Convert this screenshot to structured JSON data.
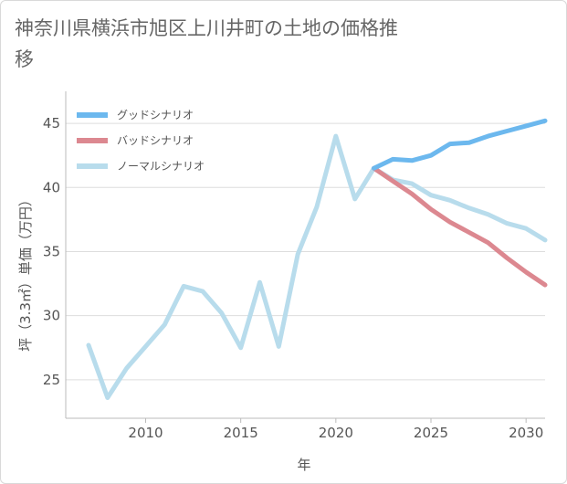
{
  "chart_data": {
    "type": "line",
    "title": "神奈川県横浜市旭区上川井町の土地の価格推移",
    "xlabel": "年",
    "ylabel": "坪（3.3㎡）単価（万円）",
    "xlim": [
      2005.8,
      2031
    ],
    "ylim": [
      22,
      47.5
    ],
    "xticks": [
      2010,
      2015,
      2020,
      2025,
      2030
    ],
    "yticks": [
      25,
      30,
      35,
      40,
      45
    ],
    "grid": "horizontal",
    "legend_position": "top-left",
    "series": [
      {
        "name": "グッドシナリオ",
        "color": "#6cb8ee",
        "x": [
          2022,
          2023,
          2024,
          2025,
          2026,
          2027,
          2028,
          2029,
          2030,
          2031
        ],
        "values": [
          41.5,
          42.2,
          42.1,
          42.5,
          43.4,
          43.5,
          44.0,
          44.4,
          44.8,
          45.2
        ]
      },
      {
        "name": "バッドシナリオ",
        "color": "#dc8890",
        "x": [
          2022,
          2023,
          2024,
          2025,
          2026,
          2027,
          2028,
          2029,
          2030,
          2031
        ],
        "values": [
          41.5,
          40.5,
          39.5,
          38.3,
          37.3,
          36.5,
          35.7,
          34.5,
          33.4,
          32.4
        ]
      },
      {
        "name": "ノーマルシナリオ",
        "color": "#b8dcec",
        "x": [
          2007,
          2008,
          2009,
          2010,
          2011,
          2012,
          2013,
          2014,
          2015,
          2016,
          2017,
          2018,
          2019,
          2020,
          2021,
          2022,
          2023,
          2024,
          2025,
          2026,
          2027,
          2028,
          2029,
          2030,
          2031
        ],
        "values": [
          27.7,
          23.6,
          25.9,
          27.6,
          29.3,
          32.3,
          31.9,
          30.2,
          27.5,
          32.6,
          27.6,
          34.8,
          38.5,
          44.0,
          39.1,
          41.5,
          40.6,
          40.3,
          39.4,
          39.0,
          38.4,
          37.9,
          37.2,
          36.8,
          35.9
        ]
      }
    ]
  }
}
